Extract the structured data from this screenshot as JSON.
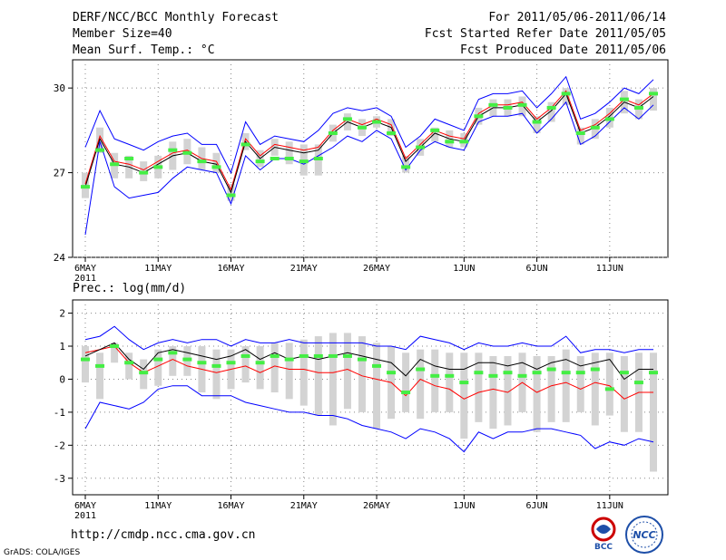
{
  "header": {
    "title": "DERF/NCC/BCC Monthly Forecast",
    "member_size": "Member Size=40",
    "variable": "Mean Surf. Temp.: °C",
    "period": "For 2011/05/06-2011/06/14",
    "refer_date": "Fcst Started Refer Date 2011/05/05",
    "produced_date": "Fcst Produced Date 2011/05/06"
  },
  "footer": {
    "url": "http://cmdp.ncc.cma.gov.cn",
    "credit": "GrADS: COLA/IGES",
    "logo_left_text": "BCC",
    "logo_right_text": "NCC"
  },
  "colors": {
    "ensemble_mean": "#000000",
    "median": "#ff0000",
    "envelope": "#0000ff",
    "box": "#d3d3d3",
    "marker": "#44ee44",
    "grid": "#888888"
  },
  "chart_data": [
    {
      "type": "line",
      "title": "Mean Surf. Temp.: °C",
      "x": [
        1,
        2,
        3,
        4,
        5,
        6,
        7,
        8,
        9,
        10,
        11,
        12,
        13,
        14,
        15,
        16,
        17,
        18,
        19,
        20,
        21,
        22,
        23,
        24,
        25,
        26,
        27,
        28,
        29,
        30,
        31,
        32,
        33,
        34,
        35,
        36,
        37,
        38,
        39,
        40
      ],
      "x_tick_labels": [
        "6MAY",
        "11MAY",
        "16MAY",
        "21MAY",
        "26MAY",
        "1JUN",
        "6JUN",
        "11JUN"
      ],
      "x_tick_positions": [
        1,
        6,
        11,
        16,
        21,
        27,
        32,
        37
      ],
      "x_year_label": "2011",
      "ylim": [
        24,
        31
      ],
      "y_ticks": [
        24,
        27,
        30
      ],
      "series": [
        {
          "name": "mean",
          "values": [
            26.5,
            28.2,
            27.3,
            27.2,
            27.0,
            27.3,
            27.6,
            27.7,
            27.4,
            27.3,
            26.3,
            28.1,
            27.5,
            27.9,
            27.8,
            27.7,
            27.8,
            28.4,
            28.8,
            28.6,
            28.8,
            28.6,
            27.4,
            27.9,
            28.4,
            28.2,
            28.1,
            29.0,
            29.3,
            29.3,
            29.4,
            28.8,
            29.2,
            29.8,
            28.4,
            28.6,
            29.0,
            29.5,
            29.3,
            29.7
          ]
        },
        {
          "name": "median",
          "values": [
            26.6,
            28.3,
            27.4,
            27.3,
            27.1,
            27.4,
            27.7,
            27.8,
            27.5,
            27.4,
            26.4,
            28.2,
            27.6,
            28.0,
            27.9,
            27.8,
            27.9,
            28.5,
            28.9,
            28.7,
            28.9,
            28.7,
            27.5,
            28.0,
            28.5,
            28.3,
            28.2,
            29.1,
            29.4,
            29.4,
            29.5,
            28.9,
            29.3,
            29.9,
            28.5,
            28.7,
            29.1,
            29.6,
            29.4,
            29.8
          ]
        },
        {
          "name": "max",
          "values": [
            27.9,
            29.2,
            28.2,
            28.0,
            27.8,
            28.1,
            28.3,
            28.4,
            28.0,
            28.0,
            27.0,
            28.8,
            28.0,
            28.3,
            28.2,
            28.1,
            28.5,
            29.1,
            29.3,
            29.2,
            29.3,
            29.0,
            27.9,
            28.3,
            28.9,
            28.7,
            28.5,
            29.6,
            29.8,
            29.8,
            29.9,
            29.3,
            29.8,
            30.4,
            28.9,
            29.1,
            29.5,
            30.0,
            29.8,
            30.3
          ]
        },
        {
          "name": "min",
          "values": [
            24.8,
            28.1,
            26.5,
            26.1,
            26.2,
            26.3,
            26.8,
            27.2,
            27.1,
            27.0,
            25.9,
            27.6,
            27.1,
            27.5,
            27.5,
            27.3,
            27.6,
            27.9,
            28.3,
            28.1,
            28.5,
            28.2,
            27.1,
            27.8,
            28.1,
            27.9,
            27.8,
            28.8,
            29.0,
            29.0,
            29.1,
            28.4,
            28.9,
            29.5,
            28.0,
            28.3,
            28.8,
            29.3,
            28.9,
            29.4
          ]
        },
        {
          "name": "box_low",
          "values": [
            26.1,
            27.7,
            26.8,
            26.8,
            26.7,
            26.8,
            27.1,
            27.3,
            27.1,
            27.0,
            26.0,
            27.8,
            27.2,
            27.6,
            27.3,
            26.9,
            26.9,
            28.1,
            28.5,
            28.3,
            28.6,
            28.3,
            27.0,
            27.6,
            28.1,
            27.9,
            27.9,
            28.7,
            29.0,
            29.0,
            29.0,
            28.4,
            28.8,
            29.4,
            28.0,
            28.2,
            28.6,
            29.1,
            28.9,
            29.2
          ]
        },
        {
          "name": "box_high",
          "values": [
            27.0,
            28.6,
            27.7,
            27.6,
            27.4,
            27.6,
            28.1,
            28.2,
            27.9,
            27.7,
            26.6,
            28.4,
            27.8,
            28.2,
            28.1,
            28.0,
            28.0,
            28.7,
            29.1,
            28.9,
            29.0,
            28.9,
            27.6,
            28.2,
            28.6,
            28.5,
            28.4,
            29.3,
            29.6,
            29.6,
            29.7,
            29.0,
            29.5,
            30.0,
            28.6,
            28.9,
            29.3,
            29.9,
            29.6,
            30.0
          ]
        },
        {
          "name": "marker",
          "values": [
            26.5,
            27.8,
            27.3,
            27.5,
            27.0,
            27.2,
            27.8,
            27.7,
            27.4,
            27.2,
            26.2,
            28.0,
            27.4,
            27.5,
            27.5,
            27.4,
            27.5,
            28.4,
            28.9,
            28.6,
            28.8,
            28.4,
            27.2,
            27.9,
            28.5,
            28.1,
            28.1,
            29.0,
            29.4,
            29.3,
            29.4,
            28.8,
            29.3,
            29.8,
            28.4,
            28.6,
            28.9,
            29.6,
            29.3,
            29.8
          ]
        }
      ]
    },
    {
      "type": "line",
      "title": "Prec.: log(mm/d)",
      "x": [
        1,
        2,
        3,
        4,
        5,
        6,
        7,
        8,
        9,
        10,
        11,
        12,
        13,
        14,
        15,
        16,
        17,
        18,
        19,
        20,
        21,
        22,
        23,
        24,
        25,
        26,
        27,
        28,
        29,
        30,
        31,
        32,
        33,
        34,
        35,
        36,
        37,
        38,
        39,
        40
      ],
      "x_tick_labels": [
        "6MAY",
        "11MAY",
        "16MAY",
        "21MAY",
        "26MAY",
        "1JUN",
        "6JUN",
        "11JUN"
      ],
      "x_tick_positions": [
        1,
        6,
        11,
        16,
        21,
        27,
        32,
        37
      ],
      "x_year_label": "2011",
      "ylim": [
        -3.5,
        2.4
      ],
      "y_ticks": [
        -3,
        -2,
        -1,
        0,
        1,
        2
      ],
      "series": [
        {
          "name": "mean",
          "values": [
            0.7,
            0.9,
            1.1,
            0.6,
            0.3,
            0.8,
            0.9,
            0.8,
            0.7,
            0.6,
            0.7,
            0.9,
            0.6,
            0.8,
            0.6,
            0.7,
            0.6,
            0.7,
            0.8,
            0.7,
            0.6,
            0.5,
            0.1,
            0.6,
            0.4,
            0.3,
            0.3,
            0.5,
            0.5,
            0.4,
            0.5,
            0.3,
            0.5,
            0.6,
            0.4,
            0.5,
            0.6,
            0.0,
            0.3,
            0.3
          ]
        },
        {
          "name": "median",
          "values": [
            0.8,
            0.9,
            1.0,
            0.5,
            0.2,
            0.4,
            0.6,
            0.4,
            0.3,
            0.2,
            0.3,
            0.4,
            0.2,
            0.4,
            0.3,
            0.3,
            0.2,
            0.2,
            0.3,
            0.1,
            0.0,
            -0.1,
            -0.5,
            0.0,
            -0.2,
            -0.3,
            -0.6,
            -0.4,
            -0.3,
            -0.4,
            -0.1,
            -0.4,
            -0.2,
            -0.1,
            -0.3,
            -0.1,
            -0.2,
            -0.6,
            -0.4,
            -0.4
          ]
        },
        {
          "name": "max",
          "values": [
            1.2,
            1.3,
            1.6,
            1.2,
            0.9,
            1.1,
            1.2,
            1.1,
            1.2,
            1.2,
            1.0,
            1.2,
            1.1,
            1.1,
            1.2,
            1.1,
            1.1,
            1.1,
            1.1,
            1.1,
            1.0,
            1.0,
            0.9,
            1.3,
            1.2,
            1.1,
            0.9,
            1.1,
            1.0,
            1.0,
            1.1,
            1.0,
            1.0,
            1.3,
            0.8,
            0.9,
            0.9,
            0.8,
            0.9,
            0.9
          ]
        },
        {
          "name": "min",
          "values": [
            -1.5,
            -0.7,
            -0.8,
            -0.9,
            -0.7,
            -0.3,
            -0.2,
            -0.2,
            -0.5,
            -0.5,
            -0.5,
            -0.7,
            -0.8,
            -0.9,
            -1.0,
            -1.0,
            -1.1,
            -1.1,
            -1.2,
            -1.4,
            -1.5,
            -1.6,
            -1.8,
            -1.5,
            -1.6,
            -1.8,
            -2.2,
            -1.6,
            -1.8,
            -1.6,
            -1.6,
            -1.5,
            -1.5,
            -1.6,
            -1.7,
            -2.1,
            -1.9,
            -2.0,
            -1.8,
            -1.9
          ]
        },
        {
          "name": "box_low",
          "values": [
            -0.1,
            -0.6,
            0.5,
            0.0,
            -0.3,
            -0.2,
            0.1,
            0.1,
            -0.4,
            -0.6,
            -0.3,
            -0.1,
            -0.3,
            -0.4,
            -0.6,
            -0.8,
            -1.1,
            -1.4,
            -0.9,
            -1.0,
            -1.5,
            -1.2,
            -1.0,
            -1.2,
            -1.0,
            -1.0,
            -1.8,
            -1.3,
            -1.5,
            -1.4,
            -1.0,
            -1.6,
            -1.3,
            -1.3,
            -1.0,
            -1.4,
            -1.1,
            -1.6,
            -1.6,
            -2.8
          ]
        },
        {
          "name": "box_high",
          "values": [
            1.0,
            0.8,
            1.1,
            0.8,
            0.6,
            0.9,
            1.0,
            1.0,
            1.0,
            0.9,
            0.9,
            1.0,
            1.0,
            1.1,
            1.1,
            1.2,
            1.3,
            1.4,
            1.4,
            1.3,
            1.1,
            1.0,
            0.8,
            0.9,
            0.9,
            0.8,
            0.8,
            0.8,
            0.7,
            0.7,
            0.8,
            0.7,
            0.7,
            0.9,
            0.7,
            0.8,
            0.8,
            0.7,
            0.8,
            0.8
          ]
        },
        {
          "name": "marker",
          "values": [
            0.6,
            0.4,
            1.0,
            0.5,
            0.2,
            0.6,
            0.8,
            0.6,
            0.5,
            0.4,
            0.5,
            0.7,
            0.5,
            0.7,
            0.6,
            0.7,
            0.7,
            0.7,
            0.7,
            0.6,
            0.4,
            0.2,
            -0.4,
            0.3,
            0.1,
            0.1,
            -0.1,
            0.2,
            0.1,
            0.2,
            0.1,
            0.2,
            0.3,
            0.2,
            0.2,
            0.3,
            -0.3,
            0.2,
            -0.1,
            0.2
          ]
        }
      ]
    }
  ]
}
